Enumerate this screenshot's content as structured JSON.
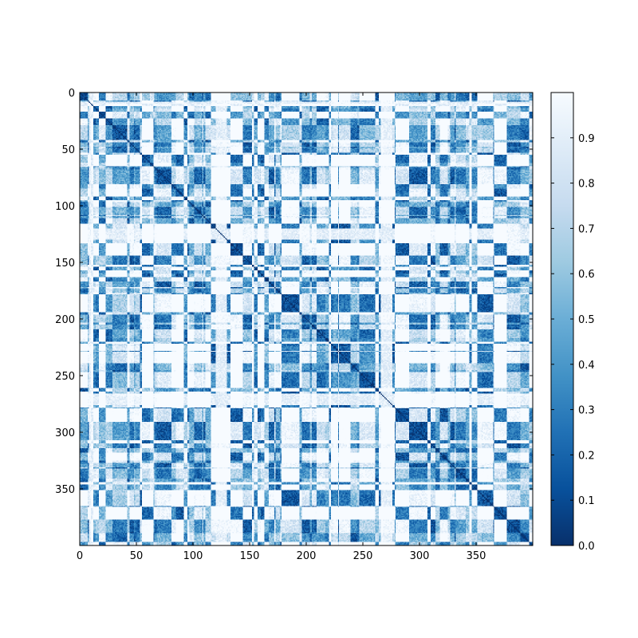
{
  "chart_data": {
    "type": "heatmap",
    "title": "",
    "xlabel": "",
    "ylabel": "",
    "matrix_size": 400,
    "xlim": [
      0,
      400
    ],
    "ylim": [
      400,
      0
    ],
    "x_ticks": [
      0,
      50,
      100,
      150,
      200,
      250,
      300,
      350
    ],
    "x_tick_labels": [
      "0",
      "50",
      "100",
      "150",
      "200",
      "250",
      "300",
      "350"
    ],
    "y_ticks": [
      0,
      50,
      100,
      150,
      200,
      250,
      300,
      350
    ],
    "y_tick_labels": [
      "0",
      "50",
      "100",
      "150",
      "200",
      "250",
      "300",
      "350"
    ],
    "colorbar": {
      "colormap": "Blues_r",
      "range": [
        0.0,
        1.0
      ],
      "ticks": [
        0.0,
        0.1,
        0.2,
        0.3,
        0.4,
        0.5,
        0.6,
        0.7,
        0.8,
        0.9
      ],
      "tick_labels": [
        "0.0",
        "0.1",
        "0.2",
        "0.3",
        "0.4",
        "0.5",
        "0.6",
        "0.7",
        "0.8",
        "0.9"
      ]
    },
    "colors": {
      "low": "#08306b",
      "mid": "#4292c6",
      "high": "#f7fbff"
    },
    "diagonal_value": 0.0,
    "grid": false,
    "legend": "colorbar-right"
  }
}
